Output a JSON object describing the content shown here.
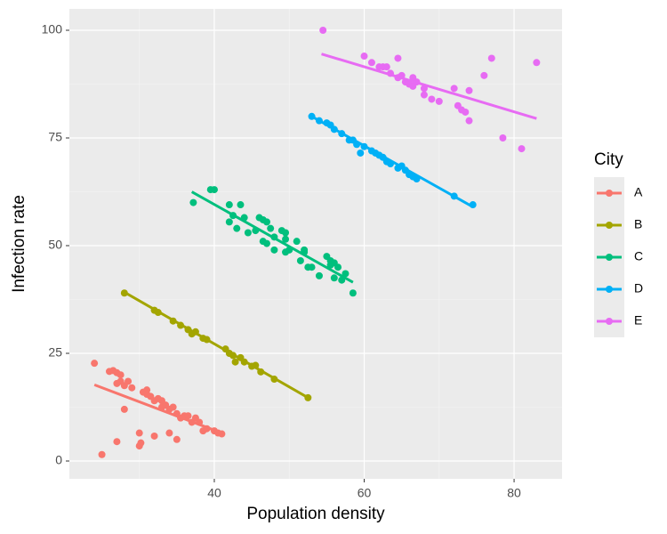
{
  "chart_data": {
    "type": "scatter",
    "x_label": "Population density",
    "y_label": "Infection rate",
    "xlim": [
      20.66,
      86.4
    ],
    "ylim": [
      -4.13,
      104.96
    ],
    "xticks": [
      40,
      60,
      80
    ],
    "yticks": [
      0,
      25,
      50,
      75,
      100
    ],
    "grid": true,
    "legend_title": "City",
    "legend_position": "right",
    "series": [
      {
        "name": "A",
        "color": "#F8766D",
        "x": [
          24,
          25,
          26,
          26.5,
          27,
          27,
          27,
          27.5,
          27.5,
          28,
          28,
          28.5,
          29,
          30,
          30,
          30.2,
          30.5,
          31,
          31,
          31.5,
          32,
          32,
          32.5,
          33,
          33,
          33.5,
          34,
          34,
          34.5,
          35,
          35,
          35.5,
          36,
          36.5,
          37,
          37.5,
          38,
          38.5,
          39,
          40,
          40.5,
          41
        ],
        "values": [
          22.7,
          1.5,
          20.8,
          21,
          20.5,
          18,
          4.5,
          18.5,
          20,
          17.5,
          12,
          18.5,
          17,
          3.5,
          6.5,
          4.2,
          16,
          16.5,
          15.5,
          15,
          5.8,
          14,
          14.5,
          14,
          12.5,
          13,
          12,
          6.5,
          12.5,
          11,
          5,
          10,
          10.5,
          10.5,
          9,
          10,
          9,
          7,
          7.5,
          7,
          6.5,
          6.3
        ],
        "trend": {
          "x": [
            24,
            41
          ],
          "values": [
            17.7,
            6.5
          ]
        }
      },
      {
        "name": "B",
        "color": "#A3A500",
        "x": [
          28,
          32,
          32.5,
          34.5,
          35.5,
          36.5,
          37,
          37.5,
          38.5,
          39,
          41.5,
          42,
          42.5,
          42.8,
          43.5,
          44,
          45,
          45.5,
          46.2,
          48,
          52.5
        ],
        "values": [
          39,
          35,
          34.5,
          32.5,
          31.5,
          30.5,
          29.5,
          30,
          28.5,
          28.2,
          26,
          25,
          24.5,
          23,
          24,
          23,
          22,
          22.2,
          20.7,
          19,
          14.7
        ],
        "trend": {
          "x": [
            28,
            52.5
          ],
          "values": [
            39.2,
            14.7
          ]
        }
      },
      {
        "name": "C",
        "color": "#00BF7D",
        "x": [
          37.2,
          39.5,
          40,
          42,
          42,
          42.5,
          43,
          43.5,
          44,
          44.5,
          45.5,
          46,
          46.5,
          46.5,
          47,
          47,
          47.5,
          48,
          48,
          49,
          49.5,
          49.5,
          49.5,
          50,
          51,
          51.5,
          52,
          52,
          52.5,
          53,
          54,
          55,
          55.5,
          55.5,
          56,
          56,
          56.5,
          57,
          57.5,
          58.5
        ],
        "values": [
          60,
          63,
          63,
          59.5,
          55.5,
          57,
          54,
          59.5,
          56.5,
          53,
          53.5,
          56.5,
          56,
          51,
          55.5,
          50.5,
          54,
          52,
          49,
          53.5,
          51.5,
          53,
          48.5,
          49,
          51,
          46.5,
          49,
          48.5,
          45,
          45,
          43,
          47.5,
          45.5,
          46.5,
          42.5,
          46,
          45,
          42,
          43.5,
          39
        ],
        "trend": {
          "x": [
            37,
            58.5
          ],
          "values": [
            62.5,
            41.5
          ]
        }
      },
      {
        "name": "D",
        "color": "#00B0F6",
        "x": [
          53,
          54,
          55,
          55.5,
          56,
          57,
          58,
          58.5,
          59,
          59.5,
          60,
          61,
          61.5,
          62,
          62.5,
          63,
          63.5,
          64.5,
          65,
          65.5,
          66,
          66.5,
          67,
          72,
          74.5
        ],
        "values": [
          80,
          79,
          78.5,
          78,
          77,
          76,
          74.5,
          74.5,
          73.5,
          71.5,
          73,
          72,
          71.5,
          71,
          70.5,
          69.5,
          69,
          68,
          68.5,
          67.5,
          66.5,
          66,
          65.5,
          61.5,
          59.5
        ],
        "trend": {
          "x": [
            53,
            74.5
          ],
          "values": [
            80,
            59
          ]
        }
      },
      {
        "name": "E",
        "color": "#E76BF3",
        "x": [
          54.5,
          60,
          61,
          62,
          62.5,
          63,
          63.5,
          64.5,
          64.5,
          65,
          65.5,
          66,
          66.5,
          66.5,
          67,
          68,
          68,
          69,
          70,
          72,
          72.5,
          73,
          73.5,
          74,
          74,
          76,
          77,
          78.5,
          81,
          83
        ],
        "values": [
          100,
          94,
          92.5,
          91.5,
          91.5,
          91.5,
          90,
          93.5,
          89,
          89.5,
          88,
          87.5,
          89,
          87,
          88,
          86.5,
          85,
          84,
          83.5,
          86.5,
          82.5,
          81.5,
          81,
          79,
          86,
          89.5,
          93.5,
          75,
          72.5,
          92.5
        ],
        "trend": {
          "x": [
            54.3,
            83
          ],
          "values": [
            94.5,
            79.5
          ]
        }
      }
    ]
  }
}
